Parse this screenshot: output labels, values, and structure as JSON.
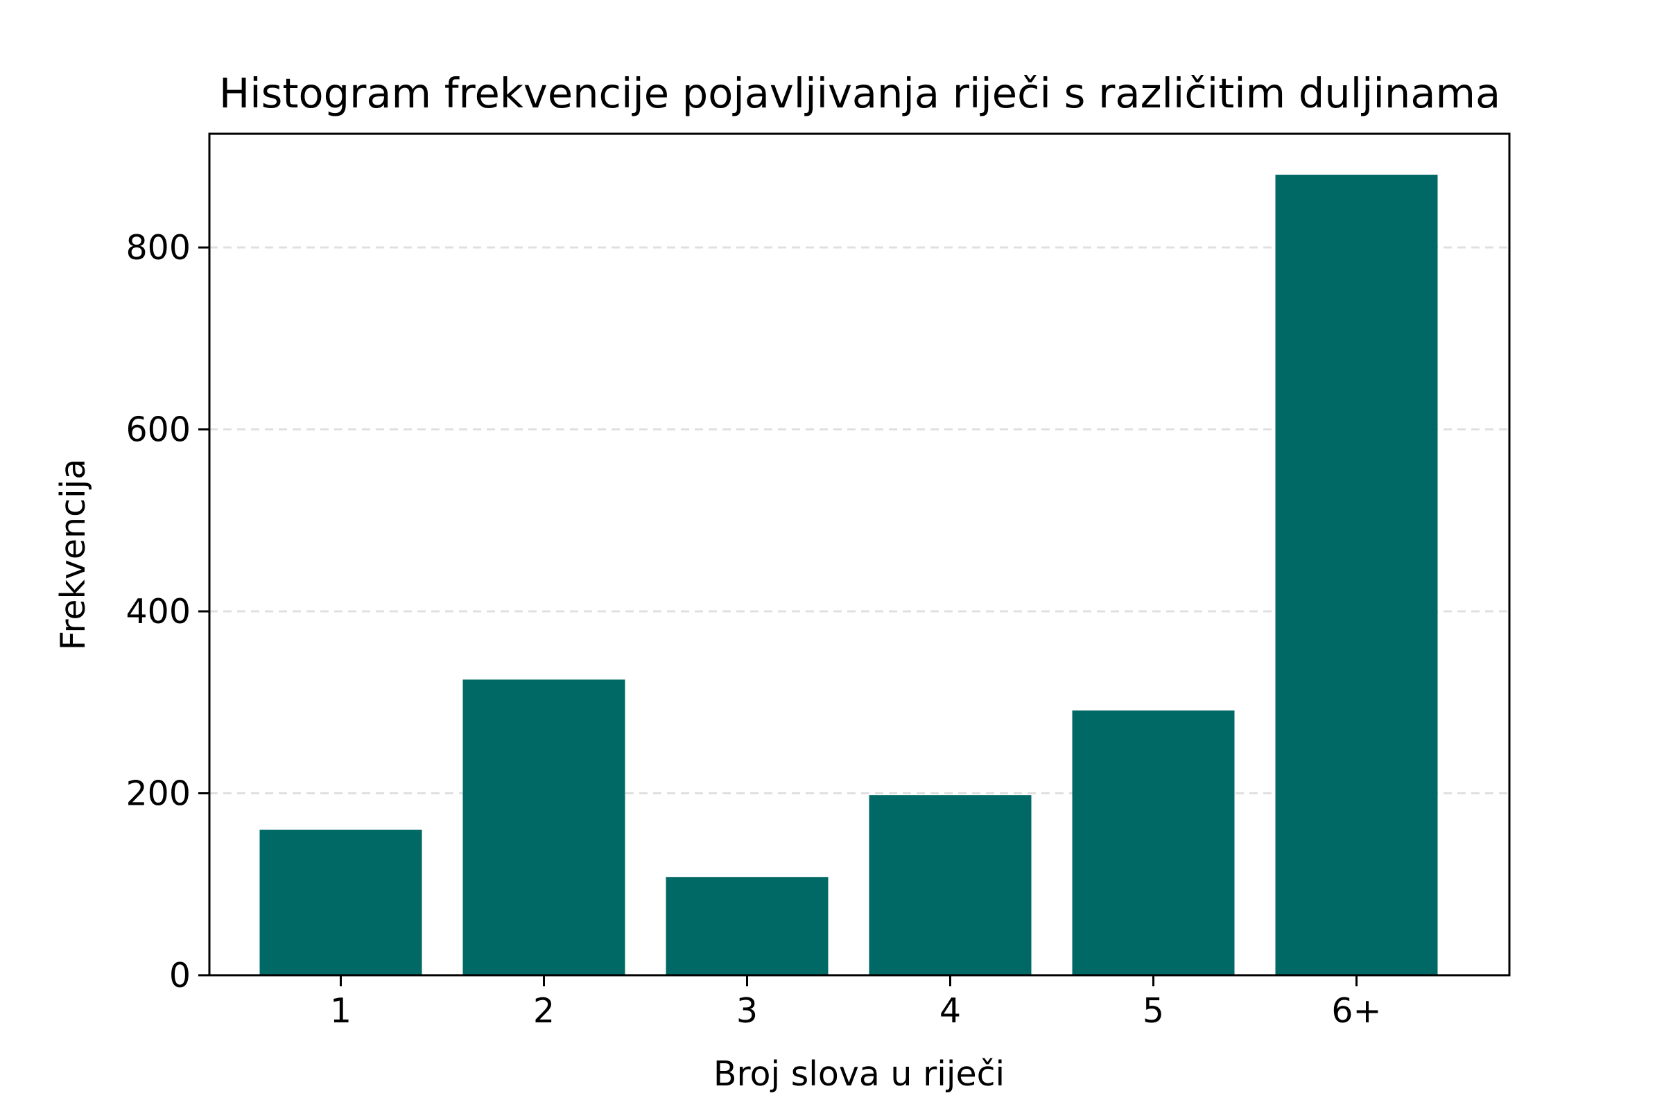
{
  "chart_data": {
    "type": "bar",
    "title": "Histogram frekvencije pojavljivanja riječi s različitim duljinama",
    "xlabel": "Broj slova u riječi",
    "ylabel": "Frekvencija",
    "categories": [
      "1",
      "2",
      "3",
      "4",
      "5",
      "6+"
    ],
    "values": [
      160,
      325,
      108,
      198,
      291,
      880
    ],
    "ylim": [
      0,
      925
    ],
    "yticks": [
      "0",
      "200",
      "400",
      "600",
      "800"
    ],
    "ytick_values": [
      0,
      200,
      400,
      600,
      800
    ],
    "grid": "horizontal dashed",
    "bar_color": "#006966",
    "grid_color": "#e0e0e0"
  }
}
